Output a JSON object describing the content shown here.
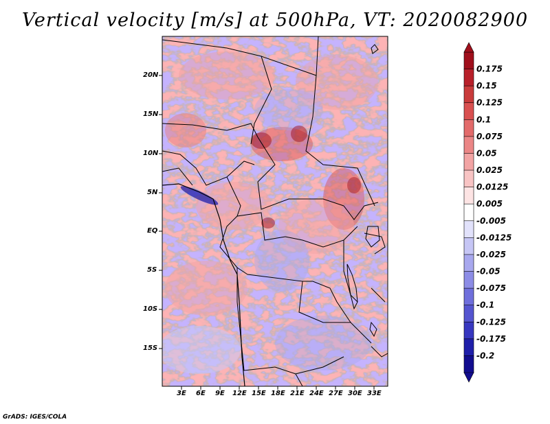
{
  "title": "Vertical velocity [m/s] at 500hPa, VT: 2020082900",
  "map": {
    "lat_labels": [
      "20N",
      "15N",
      "10N",
      "5N",
      "EQ",
      "5S",
      "10S",
      "15S"
    ],
    "lon_labels": [
      "3E",
      "6E",
      "9E",
      "12E",
      "15E",
      "18E",
      "21E",
      "24E",
      "27E",
      "30E",
      "33E"
    ]
  },
  "colorbar": {
    "labels": [
      "0.175",
      "0.15",
      "0.125",
      "0.1",
      "0.075",
      "0.05",
      "0.025",
      "0.0125",
      "0.005",
      "-0.005",
      "-0.0125",
      "-0.025",
      "-0.05",
      "-0.075",
      "-0.1",
      "-0.125",
      "-0.175",
      "-0.2"
    ],
    "colors": [
      "#a00f1c",
      "#b8202a",
      "#c93b3b",
      "#d95050",
      "#e36b6b",
      "#eb8686",
      "#f2a4a4",
      "#f8c4c4",
      "#fde4e4",
      "#ffffff",
      "#e2e2fb",
      "#c6c6f5",
      "#a8a8ee",
      "#8c8ce6",
      "#6f6fdc",
      "#5555d0",
      "#3737c0",
      "#1f1faa",
      "#120d8f"
    ]
  },
  "footer": "GrADS: IGES/COLA"
}
